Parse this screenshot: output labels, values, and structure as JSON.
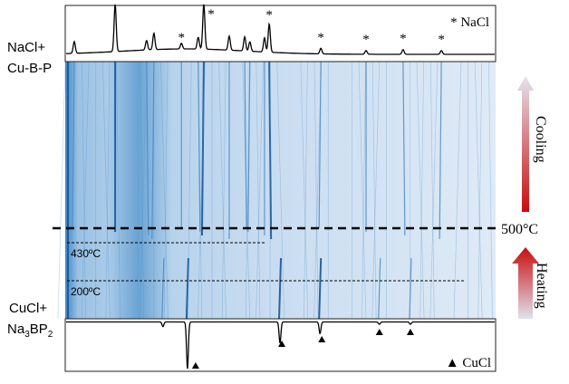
{
  "chart_data": {
    "type": "heatmap",
    "title": "",
    "xlabel": "",
    "ylabel": "",
    "x_unit": "relative 2θ position (0–100, unlabeled axis)",
    "top_pattern": {
      "label_line1": "NaCl+",
      "label_line2": "Cu-B-P",
      "legend": "* NaCl",
      "peaks": [
        {
          "x": 2.1,
          "h": 0.25,
          "star": false
        },
        {
          "x": 11.6,
          "h": 1.0,
          "star": false
        },
        {
          "x": 18.9,
          "h": 0.2,
          "star": false
        },
        {
          "x": 20.6,
          "h": 0.35,
          "star": false
        },
        {
          "x": 27.0,
          "h": 0.12,
          "star": true
        },
        {
          "x": 30.9,
          "h": 0.25,
          "star": false
        },
        {
          "x": 32.2,
          "h": 0.95,
          "star": true
        },
        {
          "x": 38.1,
          "h": 0.3,
          "star": false
        },
        {
          "x": 41.7,
          "h": 0.3,
          "star": false
        },
        {
          "x": 42.9,
          "h": 0.2,
          "star": false
        },
        {
          "x": 46.3,
          "h": 0.3,
          "star": false
        },
        {
          "x": 47.4,
          "h": 0.6,
          "star": true
        },
        {
          "x": 59.4,
          "h": 0.12,
          "star": true
        },
        {
          "x": 69.9,
          "h": 0.08,
          "star": true
        },
        {
          "x": 78.5,
          "h": 0.1,
          "star": true
        },
        {
          "x": 87.4,
          "h": 0.08,
          "star": true
        }
      ]
    },
    "bottom_pattern": {
      "label_line1": "CuCl+",
      "label_na": "Na",
      "label_sub1": "3",
      "label_bp": "BP",
      "label_sub2": "2",
      "legend": "▲ CuCl",
      "dips": [
        {
          "x": 22.7,
          "d": 0.1,
          "triangle": false
        },
        {
          "x": 28.4,
          "d": 1.0,
          "triangle": true
        },
        {
          "x": 49.9,
          "d": 0.45,
          "triangle": true
        },
        {
          "x": 59.2,
          "d": 0.25,
          "triangle": true
        },
        {
          "x": 73.0,
          "d": 0.05,
          "triangle": true
        },
        {
          "x": 80.2,
          "d": 0.05,
          "triangle": true
        }
      ]
    },
    "temperature_markers": [
      {
        "label": "500°C",
        "style": "bold-dashed"
      },
      {
        "label": "430ºC",
        "style": "dashed"
      },
      {
        "label": "200ºC",
        "style": "dashed"
      }
    ],
    "arrows": {
      "cooling": "Cooling",
      "heating": "Heating"
    },
    "colors": {
      "dark": "#0b4f96",
      "mid": "#4a8cc8",
      "light": "#dce8f5",
      "arrow_red": "#c81010",
      "arrow_gray": "#e2e2ec"
    }
  }
}
